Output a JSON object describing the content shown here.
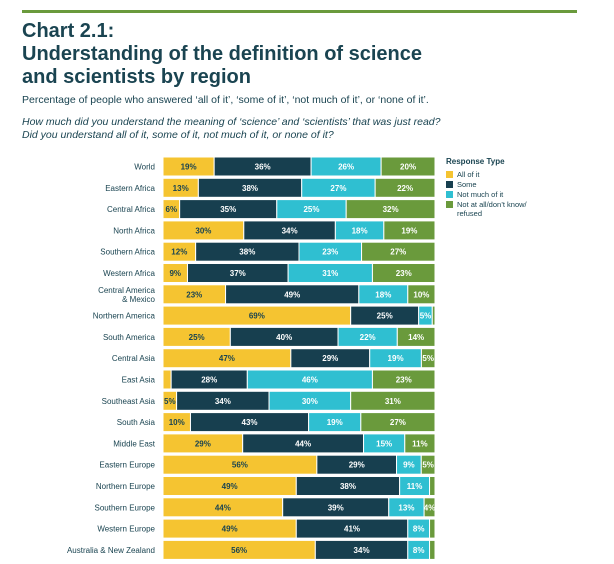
{
  "heading": {
    "chart_number": "Chart 2.1:",
    "title_line1": "Understanding of the definition of science",
    "title_line2": "and scientists by region",
    "subtitle": "Percentage of people who answered ‘all of it’, ‘some of it’, ‘not much of it’, or ‘none of it’.",
    "question_line1": "How much did you understand the meaning of ‘science’ and ‘scientists’ that was just read?",
    "question_line2": "Did you understand all of it, some of it, not much of it, or none of it?"
  },
  "colors": {
    "accent_rule": "#6a9a3c",
    "text": "#1a4451",
    "all": "#f5c431",
    "some": "#173f4f",
    "not_much": "#2fbfd1",
    "none": "#6a9a3c"
  },
  "chart_data": {
    "type": "bar",
    "orientation": "horizontal",
    "stacked": true,
    "legend_title": "Response Type",
    "legend_position": "right",
    "categories": [
      "World",
      "Eastern Africa",
      "Central Africa",
      "North Africa",
      "Southern Africa",
      "Western Africa",
      "Central America\n& Mexico",
      "Northern America",
      "South America",
      "Central Asia",
      "East Asia",
      "Southeast Asia",
      "South Asia",
      "Middle East",
      "Eastern Europe",
      "Northern Europe",
      "Southern Europe",
      "Western Europe",
      "Australia & New Zealand"
    ],
    "series": [
      {
        "name": "All of it",
        "color": "#f5c431",
        "values": [
          19,
          13,
          6,
          30,
          12,
          9,
          23,
          69,
          25,
          47,
          3,
          5,
          10,
          29,
          56,
          49,
          44,
          49,
          56
        ]
      },
      {
        "name": "Some",
        "color": "#173f4f",
        "values": [
          36,
          38,
          35,
          34,
          38,
          37,
          49,
          25,
          40,
          29,
          28,
          34,
          43,
          44,
          29,
          38,
          39,
          41,
          34
        ]
      },
      {
        "name": "Not much of it",
        "color": "#2fbfd1",
        "values": [
          26,
          27,
          25,
          18,
          23,
          31,
          18,
          5,
          22,
          19,
          46,
          30,
          19,
          15,
          9,
          11,
          13,
          8,
          8
        ]
      },
      {
        "name": "Not at all/don’t know/\nrefused",
        "color": "#6a9a3c",
        "values": [
          20,
          22,
          32,
          19,
          27,
          23,
          10,
          1,
          14,
          5,
          23,
          31,
          27,
          11,
          5,
          2,
          4,
          2,
          2
        ]
      }
    ],
    "data_labels": [
      [
        "19%",
        "36%",
        "26%",
        "20%"
      ],
      [
        "13%",
        "38%",
        "27%",
        "22%"
      ],
      [
        "6%",
        "35%",
        "25%",
        "32%"
      ],
      [
        "30%",
        "34%",
        "18%",
        "19%"
      ],
      [
        "12%",
        "38%",
        "23%",
        "27%"
      ],
      [
        "9%",
        "37%",
        "31%",
        "23%"
      ],
      [
        "23%",
        "49%",
        "18%",
        "10%"
      ],
      [
        "69%",
        "25%",
        "5%",
        ""
      ],
      [
        "25%",
        "40%",
        "22%",
        "14%"
      ],
      [
        "47%",
        "29%",
        "19%",
        "5%"
      ],
      [
        "",
        "28%",
        "46%",
        "23%"
      ],
      [
        "5%",
        "34%",
        "30%",
        "31%"
      ],
      [
        "10%",
        "43%",
        "19%",
        "27%"
      ],
      [
        "29%",
        "44%",
        "15%",
        "11%"
      ],
      [
        "56%",
        "29%",
        "9%",
        "5%"
      ],
      [
        "49%",
        "38%",
        "11%",
        ""
      ],
      [
        "44%",
        "39%",
        "13%",
        "4%"
      ],
      [
        "49%",
        "41%",
        "8%",
        ""
      ],
      [
        "56%",
        "34%",
        "8%",
        ""
      ]
    ]
  }
}
